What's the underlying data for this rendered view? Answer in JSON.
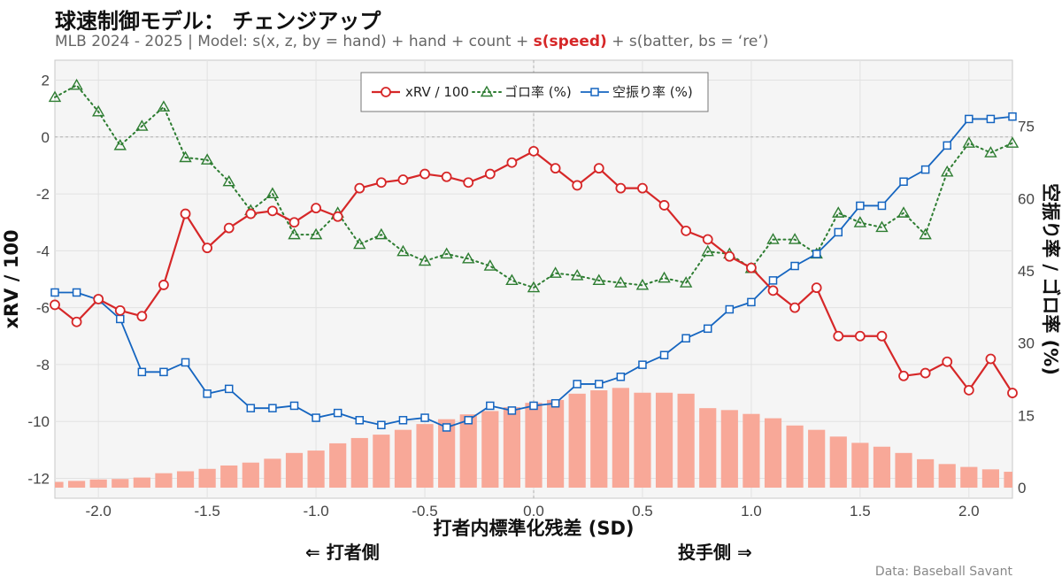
{
  "title": "球速制御モデル： チェンジアップ",
  "subtitle": {
    "prefix": "MLB 2024 - 2025 | Model:  s(x, z, by = hand) + hand + count + ",
    "highlight": "s(speed)",
    "suffix": " + s(batter, bs = ‘re’)"
  },
  "direction_left": "⇐ 打者側",
  "direction_right": "投手側 ⇒",
  "credit": "Data: Baseball Savant",
  "colors": {
    "xrv": "#d62728",
    "ground": "#2e7d32",
    "whiff": "#1565c0",
    "bars": "#f8a898",
    "panel": "#f5f5f5"
  },
  "chart_data": {
    "type": "line",
    "xlabel": "打者内標準化残差 (SD)",
    "ylabel": "xRV / 100",
    "y2label": "空振り率 / ゴロ率 (%)",
    "xlim": [
      -2.2,
      2.2
    ],
    "ylim": [
      -12.7,
      2.7
    ],
    "y2lim": [
      -2.2,
      88.7
    ],
    "x_ticks": [
      -2.0,
      -1.5,
      -1.0,
      -0.5,
      0.0,
      0.5,
      1.0,
      1.5,
      2.0
    ],
    "x_tick_labels": [
      "-2.0",
      "-1.5",
      "-1.0",
      "-0.5",
      "0.0",
      "0.5",
      "1.0",
      "1.5",
      "2.0"
    ],
    "y_ticks": [
      2,
      0,
      -2,
      -4,
      -6,
      -8,
      -10,
      -12
    ],
    "y_tick_labels": [
      "2",
      "0",
      "-2",
      "-4",
      "-6",
      "-8",
      "-10",
      "-12"
    ],
    "y2_ticks": [
      75,
      60,
      45,
      30,
      15,
      0
    ],
    "y2_tick_labels": [
      "75",
      "60",
      "45",
      "30",
      "15",
      "0"
    ],
    "x": [
      -2.2,
      -2.1,
      -2.0,
      -1.9,
      -1.8,
      -1.7,
      -1.6,
      -1.5,
      -1.4,
      -1.3,
      -1.2,
      -1.1,
      -1.0,
      -0.9,
      -0.8,
      -0.7,
      -0.6,
      -0.5,
      -0.4,
      -0.3,
      -0.2,
      -0.1,
      0.0,
      0.1,
      0.2,
      0.3,
      0.4,
      0.5,
      0.6,
      0.7,
      0.8,
      0.9,
      1.0,
      1.1,
      1.2,
      1.3,
      1.4,
      1.5,
      1.6,
      1.7,
      1.8,
      1.9,
      2.0,
      2.1,
      2.2
    ],
    "series": [
      {
        "name": "xRV / 100",
        "axis": "left",
        "style": "line-circle",
        "values": [
          -5.9,
          -6.5,
          -5.7,
          -6.1,
          -6.3,
          -5.2,
          -2.7,
          -3.9,
          -3.2,
          -2.7,
          -2.6,
          -3.0,
          -2.5,
          -2.8,
          -1.8,
          -1.6,
          -1.5,
          -1.3,
          -1.4,
          -1.6,
          -1.3,
          -0.9,
          -0.5,
          -1.1,
          -1.7,
          -1.1,
          -1.8,
          -1.8,
          -2.4,
          -3.3,
          -3.6,
          -4.2,
          -4.6,
          -5.4,
          -6.0,
          -5.3,
          -7.0,
          -7.0,
          -7.0,
          -8.4,
          -8.3,
          -7.9,
          -8.9,
          -7.8,
          -9.0
        ]
      },
      {
        "name": "ゴロ率 (%)",
        "axis": "right",
        "style": "dotted-triangle",
        "values": [
          81.0,
          83.5,
          78.0,
          71.0,
          75.0,
          79.0,
          68.5,
          68.0,
          63.5,
          57.5,
          61.0,
          52.5,
          52.5,
          57.0,
          50.5,
          52.5,
          49.0,
          47.0,
          48.5,
          47.5,
          46.0,
          43.0,
          41.5,
          44.5,
          44.0,
          43.0,
          42.5,
          42.0,
          43.5,
          42.5,
          49.0,
          48.5,
          45.5,
          51.5,
          51.5,
          48.5,
          57.0,
          55.0,
          54.0,
          57.0,
          52.5,
          65.5,
          71.5,
          69.5,
          71.5
        ]
      },
      {
        "name": "空振り率 (%)",
        "axis": "right",
        "style": "line-square",
        "values": [
          40.5,
          40.5,
          39.0,
          35.0,
          24.0,
          24.0,
          26.0,
          19.5,
          20.5,
          16.5,
          16.5,
          17.0,
          14.5,
          15.5,
          14.0,
          13.0,
          14.0,
          14.5,
          12.5,
          14.0,
          17.0,
          16.0,
          17.0,
          17.5,
          21.5,
          21.5,
          23.0,
          25.5,
          27.5,
          31.0,
          33.0,
          37.0,
          38.5,
          43.0,
          46.0,
          48.5,
          53.0,
          58.5,
          58.5,
          63.5,
          66.0,
          71.0,
          76.5,
          76.5,
          77.0
        ]
      }
    ],
    "histogram_right_axis": [
      1.2,
      1.4,
      1.7,
      1.8,
      2.1,
      3.0,
      3.4,
      3.9,
      4.6,
      5.2,
      6.0,
      7.2,
      7.7,
      9.2,
      10.3,
      11.0,
      12.0,
      13.2,
      14.2,
      15.2,
      15.9,
      16.7,
      17.6,
      18.2,
      19.5,
      20.2,
      20.7,
      19.7,
      19.7,
      19.5,
      16.5,
      16.1,
      15.3,
      14.4,
      12.9,
      12.0,
      10.6,
      9.3,
      8.5,
      7.2,
      5.9,
      4.9,
      4.3,
      3.8,
      3.3
    ],
    "legend": {
      "position": "top-center",
      "entries": [
        "xRV / 100",
        "ゴロ率 (%)",
        "空振り率 (%)"
      ]
    },
    "grid": true
  }
}
